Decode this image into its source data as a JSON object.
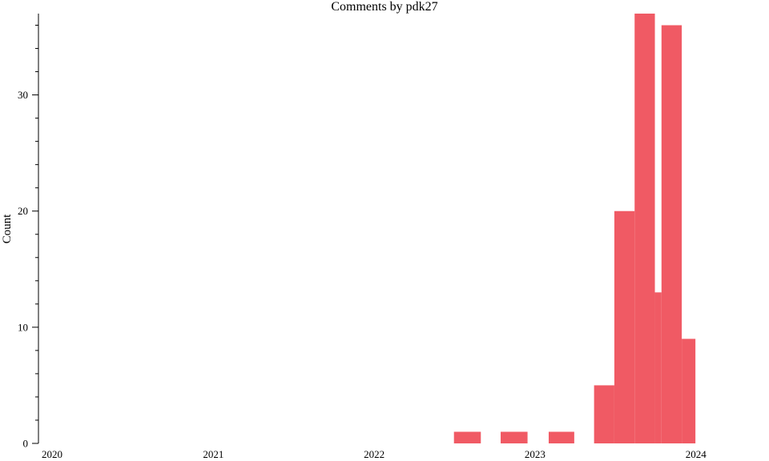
{
  "chart_data": {
    "type": "bar",
    "title": "Comments by pdk27",
    "xlabel": "",
    "ylabel": "Count",
    "color": "#f05a64",
    "xlim": [
      "2019-12-01",
      "2024-06-15"
    ],
    "ylim": [
      0,
      37
    ],
    "y_ticks": [
      0,
      10,
      20,
      30
    ],
    "y_minor_step": 2,
    "x_ticks": [
      "2020",
      "2021",
      "2022",
      "2023",
      "2024"
    ],
    "grid": false,
    "bins": [
      {
        "start": "2022-07-01",
        "end": "2022-08-31",
        "count": 1
      },
      {
        "start": "2022-10-15",
        "end": "2022-12-15",
        "count": 1
      },
      {
        "start": "2023-02-01",
        "end": "2023-03-31",
        "count": 1
      },
      {
        "start": "2023-05-15",
        "end": "2023-06-30",
        "count": 5
      },
      {
        "start": "2023-06-30",
        "end": "2023-08-15",
        "count": 20
      },
      {
        "start": "2023-08-15",
        "end": "2023-09-30",
        "count": 37
      },
      {
        "start": "2023-09-30",
        "end": "2023-10-15",
        "count": 13
      },
      {
        "start": "2023-10-15",
        "end": "2023-11-30",
        "count": 36
      },
      {
        "start": "2023-11-30",
        "end": "2023-12-31",
        "count": 9
      }
    ]
  }
}
